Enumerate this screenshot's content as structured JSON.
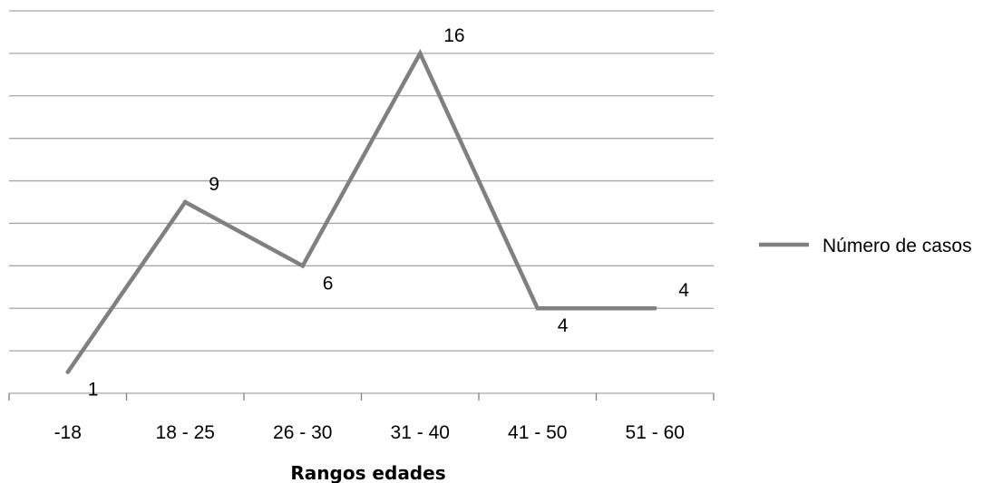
{
  "chart_data": {
    "type": "line",
    "categories": [
      "-18",
      "18 - 25",
      "26 - 30",
      "31 - 40",
      "41 - 50",
      "51 - 60"
    ],
    "series": [
      {
        "name": "Número de casos",
        "values": [
          1,
          9,
          6,
          16,
          4,
          4
        ],
        "color": "#808080"
      }
    ],
    "data_labels": [
      "1",
      "9",
      "6",
      "16",
      "4",
      "4"
    ],
    "xlabel": "Rangos edades",
    "ylabel": "",
    "title": "",
    "ylim": [
      0,
      18
    ],
    "y_gridline_step": 2,
    "grid": true,
    "gridline_color": "#a6a6a6",
    "y_tick_labels_shown": false,
    "legend_position": "right"
  }
}
